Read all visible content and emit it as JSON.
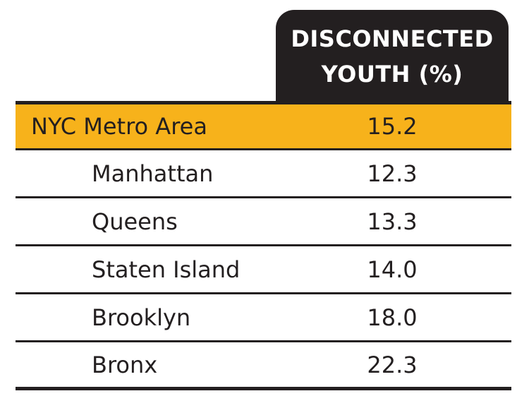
{
  "chart_data": {
    "type": "table",
    "column_header": [
      "DISCONNECTED",
      "YOUTH (%)"
    ],
    "rows": [
      {
        "name": "NYC Metro Area",
        "value": "15.2",
        "highlight": true
      },
      {
        "name": "Manhattan",
        "value": "12.3",
        "highlight": false
      },
      {
        "name": "Queens",
        "value": "13.3",
        "highlight": false
      },
      {
        "name": "Staten Island",
        "value": "14.0",
        "highlight": false
      },
      {
        "name": "Brooklyn",
        "value": "18.0",
        "highlight": false
      },
      {
        "name": "Bronx",
        "value": "22.3",
        "highlight": false
      }
    ],
    "colors": {
      "header_bg": "#231f20",
      "highlight_bg": "#f7b21b",
      "text": "#231f20"
    }
  }
}
